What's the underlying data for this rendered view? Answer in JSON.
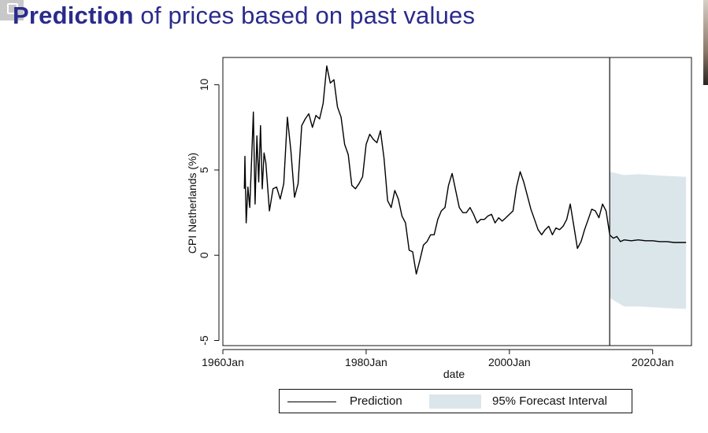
{
  "slide": {
    "title_emphasis": "Prediction",
    "title_rest": " of prices based on past values"
  },
  "chart_data": {
    "type": "line",
    "xlabel": "date",
    "ylabel": "CPI Netherlands (%)",
    "xlim": [
      "1960-01",
      "2025-06"
    ],
    "ylim": [
      -5.3,
      11.6
    ],
    "x_ticks": [
      {
        "date": "1960-01",
        "label": "1960Jan"
      },
      {
        "date": "1980-01",
        "label": "1980Jan"
      },
      {
        "date": "2000-01",
        "label": "2000Jan"
      },
      {
        "date": "2020-01",
        "label": "2020Jan"
      }
    ],
    "y_ticks": [
      -5,
      0,
      5,
      10
    ],
    "forecast_start": "2014-01",
    "series": [
      {
        "role": "history",
        "color": "#000000",
        "points": [
          [
            "1963-01",
            3.9
          ],
          [
            "1963-02",
            5.8
          ],
          [
            "1963-04",
            1.9
          ],
          [
            "1963-07",
            4.0
          ],
          [
            "1963-10",
            2.8
          ],
          [
            "1964-01",
            5.5
          ],
          [
            "1964-04",
            8.4
          ],
          [
            "1964-07",
            3.0
          ],
          [
            "1964-10",
            7.0
          ],
          [
            "1965-01",
            4.3
          ],
          [
            "1965-04",
            7.6
          ],
          [
            "1965-07",
            3.9
          ],
          [
            "1965-10",
            6.0
          ],
          [
            "1966-01",
            5.4
          ],
          [
            "1966-07",
            2.6
          ],
          [
            "1967-01",
            3.9
          ],
          [
            "1967-07",
            4.0
          ],
          [
            "1968-01",
            3.3
          ],
          [
            "1968-07",
            4.2
          ],
          [
            "1969-01",
            8.1
          ],
          [
            "1969-07",
            6.1
          ],
          [
            "1970-01",
            3.4
          ],
          [
            "1970-07",
            4.2
          ],
          [
            "1971-01",
            7.6
          ],
          [
            "1971-07",
            8.0
          ],
          [
            "1972-01",
            8.3
          ],
          [
            "1972-07",
            7.5
          ],
          [
            "1973-01",
            8.2
          ],
          [
            "1973-07",
            8.0
          ],
          [
            "1974-01",
            8.9
          ],
          [
            "1974-07",
            11.1
          ],
          [
            "1975-01",
            10.1
          ],
          [
            "1975-07",
            10.3
          ],
          [
            "1976-01",
            8.7
          ],
          [
            "1976-07",
            8.1
          ],
          [
            "1977-01",
            6.5
          ],
          [
            "1977-07",
            5.9
          ],
          [
            "1978-01",
            4.1
          ],
          [
            "1978-07",
            3.9
          ],
          [
            "1979-01",
            4.2
          ],
          [
            "1979-07",
            4.6
          ],
          [
            "1980-01",
            6.5
          ],
          [
            "1980-07",
            7.1
          ],
          [
            "1981-01",
            6.8
          ],
          [
            "1981-07",
            6.6
          ],
          [
            "1982-01",
            7.3
          ],
          [
            "1982-07",
            5.7
          ],
          [
            "1983-01",
            3.2
          ],
          [
            "1983-07",
            2.8
          ],
          [
            "1984-01",
            3.8
          ],
          [
            "1984-07",
            3.3
          ],
          [
            "1985-01",
            2.3
          ],
          [
            "1985-07",
            1.9
          ],
          [
            "1986-01",
            0.3
          ],
          [
            "1986-07",
            0.2
          ],
          [
            "1987-01",
            -1.1
          ],
          [
            "1987-07",
            -0.3
          ],
          [
            "1988-01",
            0.6
          ],
          [
            "1988-07",
            0.8
          ],
          [
            "1989-01",
            1.2
          ],
          [
            "1989-07",
            1.2
          ],
          [
            "1990-01",
            2.1
          ],
          [
            "1990-07",
            2.6
          ],
          [
            "1991-01",
            2.8
          ],
          [
            "1991-07",
            4.1
          ],
          [
            "1992-01",
            4.8
          ],
          [
            "1992-07",
            3.8
          ],
          [
            "1993-01",
            2.8
          ],
          [
            "1993-07",
            2.5
          ],
          [
            "1994-01",
            2.5
          ],
          [
            "1994-07",
            2.8
          ],
          [
            "1995-01",
            2.4
          ],
          [
            "1995-07",
            1.9
          ],
          [
            "1996-01",
            2.1
          ],
          [
            "1996-07",
            2.1
          ],
          [
            "1997-01",
            2.3
          ],
          [
            "1997-07",
            2.4
          ],
          [
            "1998-01",
            1.9
          ],
          [
            "1998-07",
            2.2
          ],
          [
            "1999-01",
            2.0
          ],
          [
            "1999-07",
            2.2
          ],
          [
            "2000-01",
            2.4
          ],
          [
            "2000-07",
            2.6
          ],
          [
            "2001-01",
            4.0
          ],
          [
            "2001-07",
            4.9
          ],
          [
            "2002-01",
            4.3
          ],
          [
            "2002-07",
            3.5
          ],
          [
            "2003-01",
            2.7
          ],
          [
            "2003-07",
            2.1
          ],
          [
            "2004-01",
            1.5
          ],
          [
            "2004-07",
            1.2
          ],
          [
            "2005-01",
            1.5
          ],
          [
            "2005-07",
            1.7
          ],
          [
            "2006-01",
            1.2
          ],
          [
            "2006-07",
            1.6
          ],
          [
            "2007-01",
            1.5
          ],
          [
            "2007-07",
            1.7
          ],
          [
            "2008-01",
            2.1
          ],
          [
            "2008-07",
            3.0
          ],
          [
            "2009-01",
            1.7
          ],
          [
            "2009-07",
            0.4
          ],
          [
            "2010-01",
            0.8
          ],
          [
            "2010-07",
            1.5
          ],
          [
            "2011-01",
            2.1
          ],
          [
            "2011-07",
            2.7
          ],
          [
            "2012-01",
            2.6
          ],
          [
            "2012-07",
            2.2
          ],
          [
            "2013-01",
            3.0
          ],
          [
            "2013-07",
            2.6
          ],
          [
            "2014-01",
            1.2
          ]
        ]
      },
      {
        "role": "prediction",
        "name": "Prediction",
        "color": "#000000",
        "points": [
          [
            "2014-01",
            1.2
          ],
          [
            "2014-07",
            1.0
          ],
          [
            "2015-01",
            1.1
          ],
          [
            "2015-07",
            0.8
          ],
          [
            "2016-01",
            0.9
          ],
          [
            "2017-01",
            0.85
          ],
          [
            "2018-01",
            0.9
          ],
          [
            "2019-01",
            0.85
          ],
          [
            "2020-01",
            0.85
          ],
          [
            "2021-01",
            0.8
          ],
          [
            "2022-01",
            0.8
          ],
          [
            "2023-01",
            0.75
          ],
          [
            "2024-01",
            0.75
          ],
          [
            "2024-09",
            0.75
          ]
        ]
      }
    ],
    "interval": {
      "name": "95% Forecast Interval",
      "color": "#dbe6eb",
      "upper": [
        [
          "2014-01",
          4.9
        ],
        [
          "2016-01",
          4.7
        ],
        [
          "2018-01",
          4.75
        ],
        [
          "2020-01",
          4.7
        ],
        [
          "2022-01",
          4.65
        ],
        [
          "2024-09",
          4.6
        ]
      ],
      "lower": [
        [
          "2014-01",
          -2.5
        ],
        [
          "2016-01",
          -3.0
        ],
        [
          "2018-01",
          -3.0
        ],
        [
          "2020-01",
          -3.05
        ],
        [
          "2022-01",
          -3.1
        ],
        [
          "2024-09",
          -3.15
        ]
      ]
    },
    "legend": {
      "placement": "bottom",
      "entries": [
        "Prediction",
        "95% Forecast Interval"
      ]
    }
  }
}
